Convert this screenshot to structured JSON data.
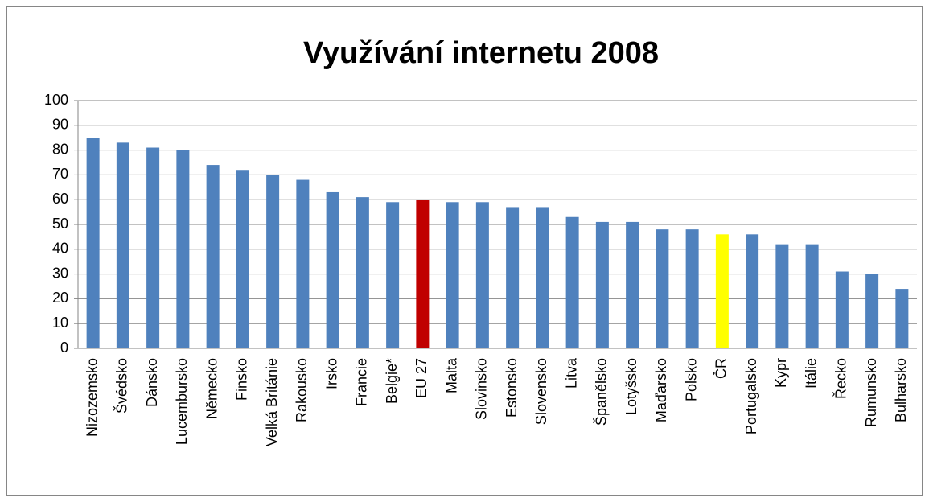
{
  "chart_data": {
    "type": "bar",
    "title": "Využívání internetu 2008",
    "categories": [
      "Nizozemsko",
      "Švédsko",
      "Dánsko",
      "Lucembursko",
      "Německo",
      "Finsko",
      "Velká Británie",
      "Rakousko",
      "Irsko",
      "Francie",
      "Belgie*",
      "EU 27",
      "Malta",
      "Slovinsko",
      "Estonsko",
      "Slovensko",
      "Litva",
      "Španělsko",
      "Lotyšsko",
      "Maďarsko",
      "Polsko",
      "ČR",
      "Portugalsko",
      "Kypr",
      "Itálie",
      "Řecko",
      "Rumunsko",
      "Bulharsko"
    ],
    "values": [
      85,
      83,
      81,
      80,
      74,
      72,
      70,
      68,
      63,
      61,
      59,
      60,
      59,
      59,
      57,
      57,
      53,
      51,
      51,
      48,
      48,
      46,
      46,
      42,
      42,
      31,
      30,
      24
    ],
    "colors": [
      "#4f81bd",
      "#4f81bd",
      "#4f81bd",
      "#4f81bd",
      "#4f81bd",
      "#4f81bd",
      "#4f81bd",
      "#4f81bd",
      "#4f81bd",
      "#4f81bd",
      "#4f81bd",
      "#c00000",
      "#4f81bd",
      "#4f81bd",
      "#4f81bd",
      "#4f81bd",
      "#4f81bd",
      "#4f81bd",
      "#4f81bd",
      "#4f81bd",
      "#4f81bd",
      "#ffff00",
      "#4f81bd",
      "#4f81bd",
      "#4f81bd",
      "#4f81bd",
      "#4f81bd",
      "#4f81bd"
    ],
    "ylim": [
      0,
      100
    ],
    "yticks": [
      0,
      10,
      20,
      30,
      40,
      50,
      60,
      70,
      80,
      90,
      100
    ],
    "grid": true
  }
}
